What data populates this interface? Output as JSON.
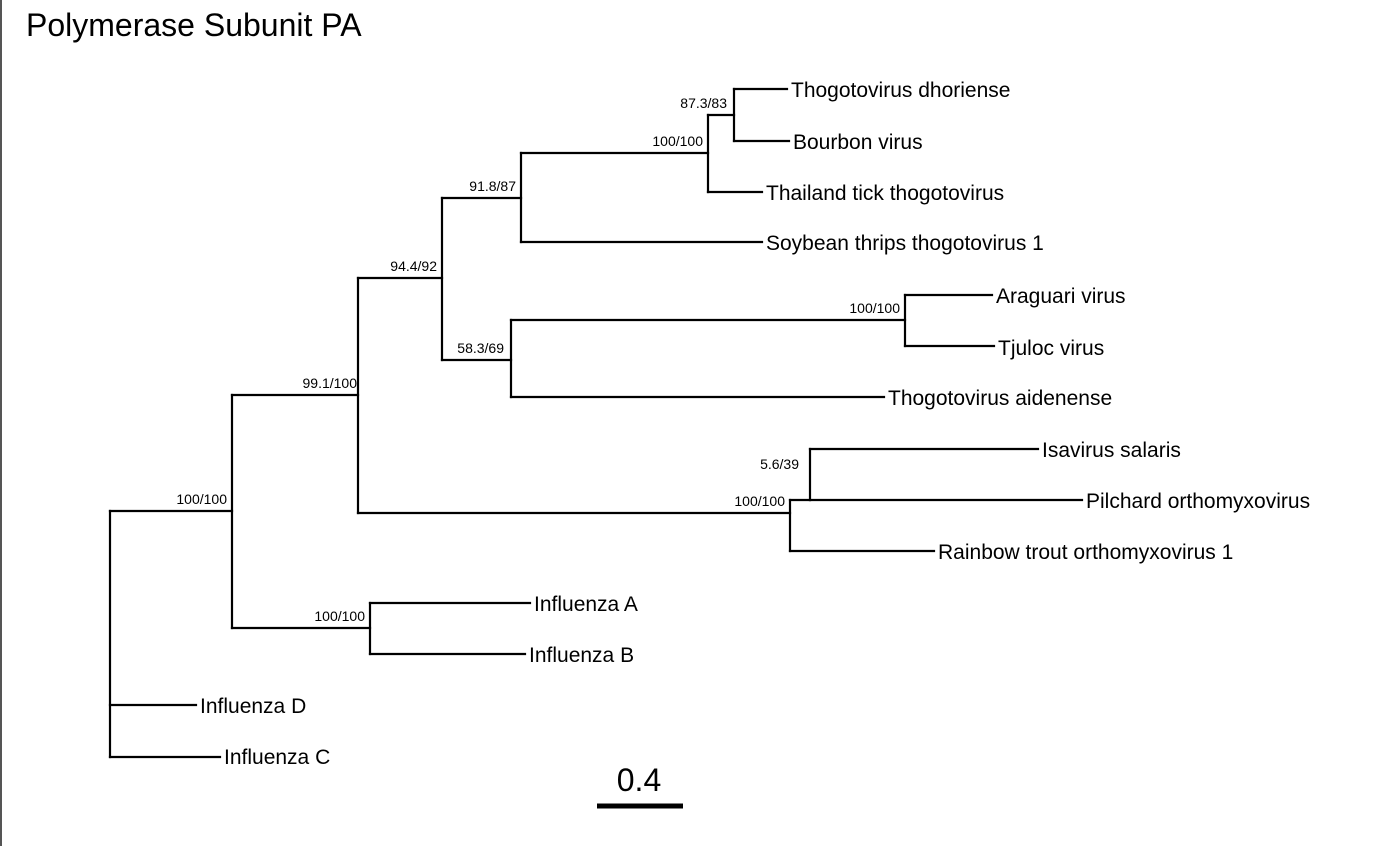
{
  "title": "Polymerase Subunit PA",
  "scale_bar": {
    "label": "0.4",
    "value": 0.4
  },
  "tree": {
    "leaves": [
      "Thogotovirus dhoriense",
      "Bourbon virus",
      "Thailand tick thogotovirus",
      "Soybean thrips thogotovirus 1",
      "Araguari virus",
      "Tjuloc virus",
      "Thogotovirus aidenense",
      "Isavirus salaris",
      "Pilchard orthomyxovirus",
      "Rainbow trout orthomyxovirus 1",
      "Influenza A",
      "Influenza B",
      "Influenza D",
      "Influenza C"
    ],
    "support_values": [
      "87.3/83",
      "100/100",
      "91.8/87",
      "94.4/92",
      "100/100",
      "58.3/69",
      "99.1/100",
      "5.6/39",
      "100/100",
      "100/100",
      "100/100"
    ]
  }
}
